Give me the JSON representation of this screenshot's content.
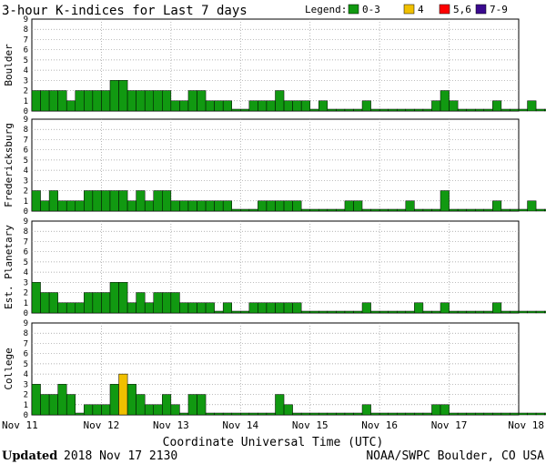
{
  "title": "3-hour K-indices for Last 7 days",
  "legend": {
    "label": "Legend:",
    "items": [
      {
        "label": "0-3",
        "color": "#119911"
      },
      {
        "label": "4",
        "color": "#f0c000"
      },
      {
        "label": "5,6",
        "color": "#ff0000"
      },
      {
        "label": "7-9",
        "color": "#3a0a8f"
      }
    ]
  },
  "xlabel": "Coordinate Universal Time (UTC)",
  "footer": {
    "updated_label": "Updated",
    "updated_value": "2018 Nov 17 2130",
    "source": "NOAA/SWPC Boulder, CO USA"
  },
  "chart_data": {
    "type": "bar",
    "x_ticks": [
      "Nov 11",
      "Nov 12",
      "Nov 13",
      "Nov 14",
      "Nov 15",
      "Nov 16",
      "Nov 17",
      "Nov 18"
    ],
    "y_ticks": [
      0,
      1,
      2,
      3,
      4,
      5,
      6,
      7,
      8,
      9
    ],
    "ylim": [
      0,
      9
    ],
    "bins_per_day": 8,
    "panels": [
      {
        "name": "Boulder",
        "values": [
          2,
          2,
          2,
          2,
          1,
          2,
          2,
          2,
          2,
          3,
          3,
          2,
          2,
          2,
          2,
          2,
          1,
          1,
          2,
          2,
          1,
          1,
          1,
          0,
          0,
          1,
          1,
          1,
          2,
          1,
          1,
          1,
          0,
          1,
          0,
          0,
          0,
          0,
          1,
          0,
          0,
          0,
          0,
          0,
          0,
          0,
          1,
          2,
          1,
          0,
          0,
          0,
          0,
          1,
          0,
          0,
          0,
          1,
          0,
          0
        ]
      },
      {
        "name": "Fredericksburg",
        "values": [
          2,
          1,
          2,
          1,
          1,
          1,
          2,
          2,
          2,
          2,
          2,
          1,
          2,
          1,
          2,
          2,
          1,
          1,
          1,
          1,
          1,
          1,
          1,
          0,
          0,
          0,
          1,
          1,
          1,
          1,
          1,
          0,
          0,
          0,
          0,
          0,
          1,
          1,
          0,
          0,
          0,
          0,
          0,
          1,
          0,
          0,
          0,
          2,
          0,
          0,
          0,
          0,
          0,
          1,
          0,
          0,
          0,
          1,
          0,
          0
        ]
      },
      {
        "name": "Est. Planetary",
        "values": [
          3,
          2,
          2,
          1,
          1,
          1,
          2,
          2,
          2,
          3,
          3,
          1,
          2,
          1,
          2,
          2,
          2,
          1,
          1,
          1,
          1,
          0,
          1,
          0,
          0,
          1,
          1,
          1,
          1,
          1,
          1,
          0,
          0,
          0,
          0,
          0,
          0,
          0,
          1,
          0,
          0,
          0,
          0,
          0,
          1,
          0,
          0,
          1,
          0,
          0,
          0,
          0,
          0,
          1,
          0,
          0,
          0,
          0,
          0,
          0
        ]
      },
      {
        "name": "College",
        "values": [
          3,
          2,
          2,
          3,
          2,
          0,
          1,
          1,
          1,
          3,
          4,
          3,
          2,
          1,
          1,
          2,
          1,
          0,
          2,
          2,
          0,
          0,
          0,
          0,
          0,
          0,
          0,
          0,
          2,
          1,
          0,
          0,
          0,
          0,
          0,
          0,
          0,
          0,
          1,
          0,
          0,
          0,
          0,
          0,
          0,
          0,
          1,
          1,
          0,
          0,
          0,
          0,
          0,
          0,
          0,
          0,
          0,
          0,
          0,
          0
        ]
      }
    ]
  }
}
